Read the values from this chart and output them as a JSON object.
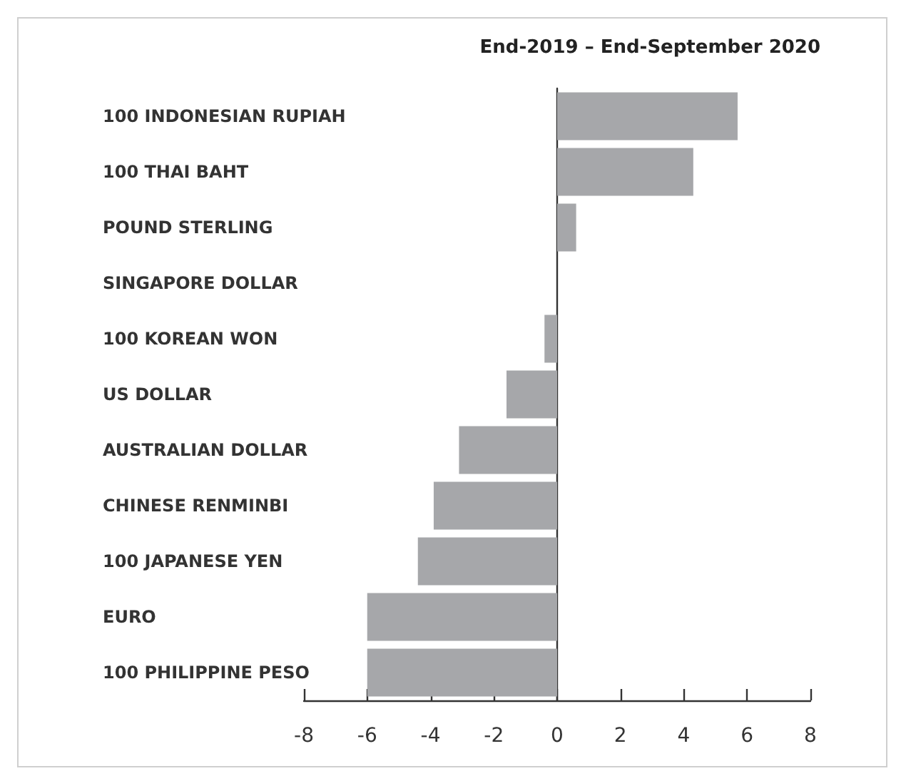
{
  "chart_data": {
    "type": "bar",
    "orientation": "horizontal",
    "title": "End-2019 – End-September 2020",
    "categories": [
      "100 INDONESIAN RUPIAH",
      "100 THAI BAHT",
      "POUND STERLING",
      "SINGAPORE DOLLAR",
      "100 KOREAN WON",
      "US DOLLAR",
      "AUSTRALIAN DOLLAR",
      "CHINESE RENMINBI",
      "100 JAPANESE YEN",
      "EURO",
      "100 PHILIPPINE PESO"
    ],
    "values": [
      5.7,
      4.3,
      0.6,
      0,
      -0.4,
      -1.6,
      -3.1,
      -3.9,
      -4.4,
      -6.0,
      -6.0
    ],
    "color": "#a6a7aa",
    "xlim": [
      -8,
      8
    ],
    "xticks": [
      -8,
      -6,
      -4,
      -2,
      0,
      2,
      4,
      6,
      8
    ]
  }
}
